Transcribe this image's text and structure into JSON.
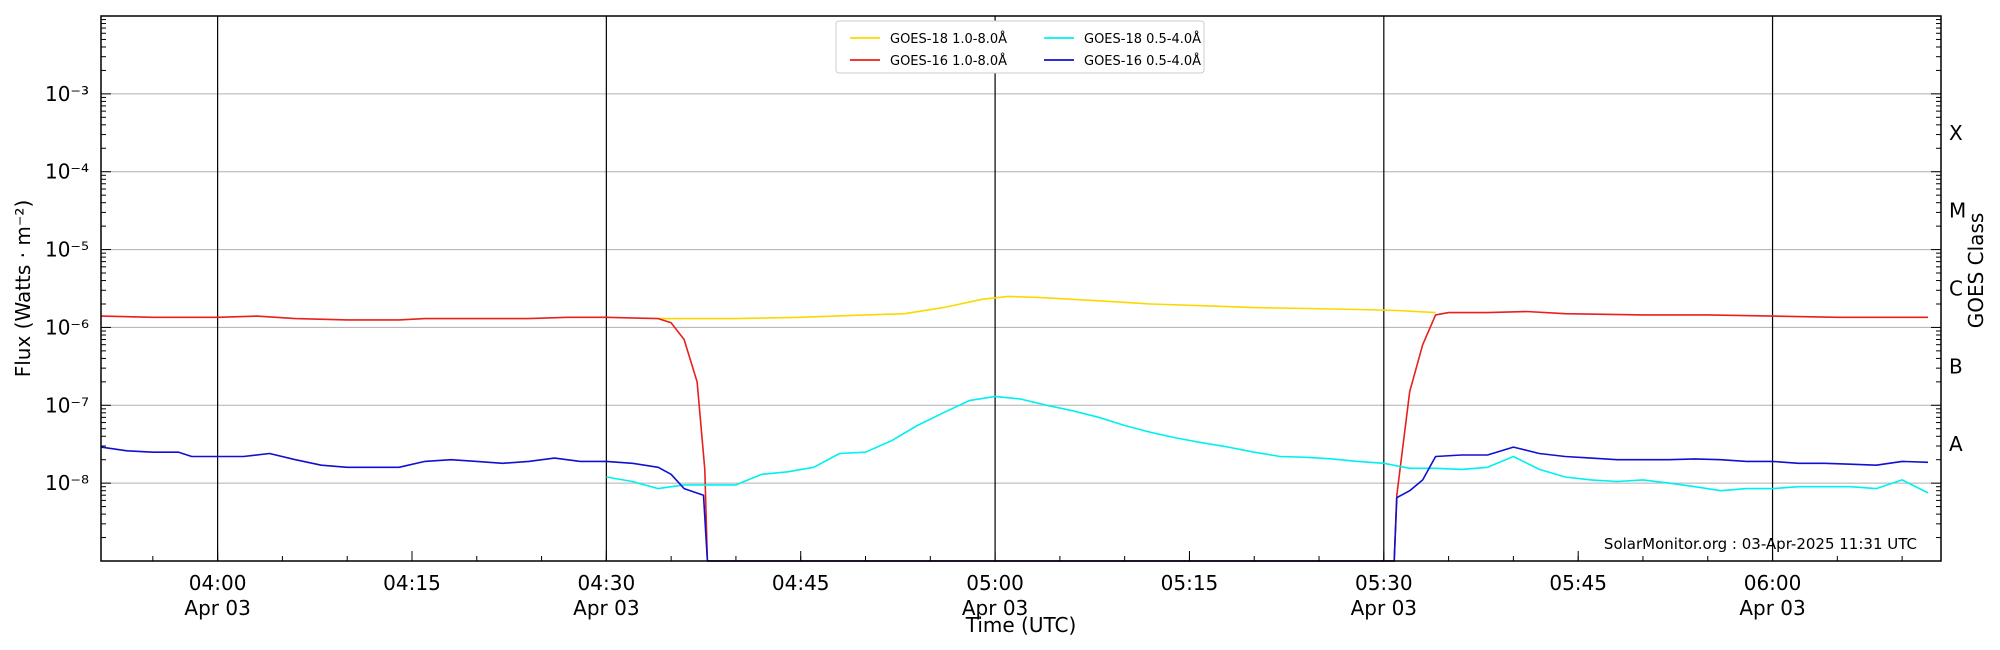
{
  "chart_data": {
    "type": "line",
    "xlabel": "Time (UTC)",
    "ylabel": "Flux (Watts · m⁻²)",
    "right_label": "GOES Class",
    "credit": "SolarMonitor.org : 03-Apr-2025 11:31 UTC",
    "x_range": [
      "03:51",
      "06:13"
    ],
    "y_scale": "log",
    "ylim": [
      1e-09,
      0.01
    ],
    "grid": "horizontal at each decade",
    "legend_position": "top-center",
    "x_ticks": [
      {
        "time": "04:00",
        "label": "04:00",
        "sublabel": "Apr 03",
        "vline": true
      },
      {
        "time": "04:15",
        "label": "04:15",
        "sublabel": "",
        "vline": false
      },
      {
        "time": "04:30",
        "label": "04:30",
        "sublabel": "Apr 03",
        "vline": true
      },
      {
        "time": "04:45",
        "label": "04:45",
        "sublabel": "",
        "vline": false
      },
      {
        "time": "05:00",
        "label": "05:00",
        "sublabel": "Apr 03",
        "vline": true
      },
      {
        "time": "05:15",
        "label": "05:15",
        "sublabel": "",
        "vline": false
      },
      {
        "time": "05:30",
        "label": "05:30",
        "sublabel": "Apr 03",
        "vline": true
      },
      {
        "time": "05:45",
        "label": "05:45",
        "sublabel": "",
        "vline": false
      },
      {
        "time": "06:00",
        "label": "06:00",
        "sublabel": "Apr 03",
        "vline": true
      }
    ],
    "y_ticks": [
      {
        "exp": -8,
        "label": "10⁻⁸"
      },
      {
        "exp": -7,
        "label": "10⁻⁷"
      },
      {
        "exp": -6,
        "label": "10⁻⁶"
      },
      {
        "exp": -5,
        "label": "10⁻⁵"
      },
      {
        "exp": -4,
        "label": "10⁻⁴"
      },
      {
        "exp": -3,
        "label": "10⁻³"
      }
    ],
    "goes_classes": [
      {
        "label": "A",
        "exp": -7.5
      },
      {
        "label": "B",
        "exp": -6.5
      },
      {
        "label": "C",
        "exp": -5.5
      },
      {
        "label": "M",
        "exp": -4.5
      },
      {
        "label": "X",
        "exp": -3.5
      }
    ],
    "series": [
      {
        "name": "GOES-18 1.0-8.0Å",
        "color": "#ffd700",
        "points": [
          [
            "04:34",
            1.3e-06
          ],
          [
            "04:40",
            1.3e-06
          ],
          [
            "04:45",
            1.35e-06
          ],
          [
            "04:50",
            1.45e-06
          ],
          [
            "04:53",
            1.5e-06
          ],
          [
            "04:56",
            1.8e-06
          ],
          [
            "04:59",
            2.3e-06
          ],
          [
            "05:01",
            2.5e-06
          ],
          [
            "05:04",
            2.4e-06
          ],
          [
            "05:08",
            2.2e-06
          ],
          [
            "05:12",
            2e-06
          ],
          [
            "05:16",
            1.9e-06
          ],
          [
            "05:20",
            1.8e-06
          ],
          [
            "05:24",
            1.75e-06
          ],
          [
            "05:28",
            1.7e-06
          ],
          [
            "05:31",
            1.65e-06
          ],
          [
            "05:34",
            1.55e-06
          ]
        ]
      },
      {
        "name": "GOES-16 1.0-8.0Å",
        "color": "#e8201a",
        "points": [
          [
            "03:51",
            1.4e-06
          ],
          [
            "03:55",
            1.35e-06
          ],
          [
            "04:00",
            1.35e-06
          ],
          [
            "04:03",
            1.4e-06
          ],
          [
            "04:06",
            1.3e-06
          ],
          [
            "04:10",
            1.25e-06
          ],
          [
            "04:14",
            1.25e-06
          ],
          [
            "04:16",
            1.3e-06
          ],
          [
            "04:20",
            1.3e-06
          ],
          [
            "04:24",
            1.3e-06
          ],
          [
            "04:27",
            1.35e-06
          ],
          [
            "04:30",
            1.35e-06
          ],
          [
            "04:34",
            1.3e-06
          ],
          [
            "04:35",
            1.15e-06
          ],
          [
            "04:36",
            7e-07
          ],
          [
            "04:37",
            2e-07
          ],
          [
            "04:37.6",
            1.5e-08
          ],
          [
            "04:37.8",
            1e-09
          ],
          [
            "05:30.8",
            1e-09
          ],
          [
            "05:31",
            7e-09
          ],
          [
            "05:32",
            1.5e-07
          ],
          [
            "05:33",
            6e-07
          ],
          [
            "05:34",
            1.45e-06
          ],
          [
            "05:35",
            1.55e-06
          ],
          [
            "05:38",
            1.55e-06
          ],
          [
            "05:41",
            1.6e-06
          ],
          [
            "05:44",
            1.5e-06
          ],
          [
            "05:50",
            1.45e-06
          ],
          [
            "05:55",
            1.45e-06
          ],
          [
            "06:00",
            1.4e-06
          ],
          [
            "06:05",
            1.35e-06
          ],
          [
            "06:10",
            1.35e-06
          ],
          [
            "06:12",
            1.35e-06
          ]
        ]
      },
      {
        "name": "GOES-18 0.5-4.0Å",
        "color": "#00f0f0",
        "points": [
          [
            "04:30",
            1.2e-08
          ],
          [
            "04:32",
            1.05e-08
          ],
          [
            "04:34",
            8.5e-09
          ],
          [
            "04:36",
            9.5e-09
          ],
          [
            "04:38",
            9.5e-09
          ],
          [
            "04:40",
            9.5e-09
          ],
          [
            "04:42",
            1.3e-08
          ],
          [
            "04:44",
            1.4e-08
          ],
          [
            "04:46",
            1.6e-08
          ],
          [
            "04:48",
            2.4e-08
          ],
          [
            "04:50",
            2.5e-08
          ],
          [
            "04:52",
            3.5e-08
          ],
          [
            "04:54",
            5.5e-08
          ],
          [
            "04:56",
            8e-08
          ],
          [
            "04:58",
            1.15e-07
          ],
          [
            "05:00",
            1.3e-07
          ],
          [
            "05:02",
            1.2e-07
          ],
          [
            "05:04",
            1e-07
          ],
          [
            "05:06",
            8.5e-08
          ],
          [
            "05:08",
            7e-08
          ],
          [
            "05:10",
            5.5e-08
          ],
          [
            "05:12",
            4.5e-08
          ],
          [
            "05:14",
            3.8e-08
          ],
          [
            "05:16",
            3.3e-08
          ],
          [
            "05:18",
            2.9e-08
          ],
          [
            "05:20",
            2.5e-08
          ],
          [
            "05:22",
            2.2e-08
          ],
          [
            "05:24",
            2.15e-08
          ],
          [
            "05:26",
            2.05e-08
          ],
          [
            "05:28",
            1.9e-08
          ],
          [
            "05:30",
            1.8e-08
          ],
          [
            "05:32",
            1.55e-08
          ],
          [
            "05:34",
            1.55e-08
          ],
          [
            "05:36",
            1.5e-08
          ],
          [
            "05:38",
            1.6e-08
          ],
          [
            "05:40",
            2.2e-08
          ],
          [
            "05:42",
            1.5e-08
          ],
          [
            "05:44",
            1.2e-08
          ],
          [
            "05:46",
            1.1e-08
          ],
          [
            "05:48",
            1.05e-08
          ],
          [
            "05:50",
            1.1e-08
          ],
          [
            "05:52",
            1e-08
          ],
          [
            "05:54",
            9e-09
          ],
          [
            "05:56",
            8e-09
          ],
          [
            "05:58",
            8.5e-09
          ],
          [
            "06:00",
            8.5e-09
          ],
          [
            "06:02",
            9e-09
          ],
          [
            "06:04",
            9e-09
          ],
          [
            "06:06",
            9e-09
          ],
          [
            "06:08",
            8.5e-09
          ],
          [
            "06:10",
            1.1e-08
          ],
          [
            "06:12",
            7.5e-09
          ]
        ]
      },
      {
        "name": "GOES-16 0.5-4.0Å",
        "color": "#1010d0",
        "points": [
          [
            "03:51",
            2.9e-08
          ],
          [
            "03:53",
            2.6e-08
          ],
          [
            "03:55",
            2.5e-08
          ],
          [
            "03:57",
            2.5e-08
          ],
          [
            "03:58",
            2.2e-08
          ],
          [
            "04:00",
            2.2e-08
          ],
          [
            "04:02",
            2.2e-08
          ],
          [
            "04:04",
            2.4e-08
          ],
          [
            "04:06",
            2e-08
          ],
          [
            "04:08",
            1.7e-08
          ],
          [
            "04:10",
            1.6e-08
          ],
          [
            "04:12",
            1.6e-08
          ],
          [
            "04:14",
            1.6e-08
          ],
          [
            "04:16",
            1.9e-08
          ],
          [
            "04:18",
            2e-08
          ],
          [
            "04:20",
            1.9e-08
          ],
          [
            "04:22",
            1.8e-08
          ],
          [
            "04:24",
            1.9e-08
          ],
          [
            "04:26",
            2.1e-08
          ],
          [
            "04:28",
            1.9e-08
          ],
          [
            "04:30",
            1.9e-08
          ],
          [
            "04:32",
            1.8e-08
          ],
          [
            "04:34",
            1.6e-08
          ],
          [
            "04:35",
            1.3e-08
          ],
          [
            "04:36",
            8.5e-09
          ],
          [
            "04:37.5",
            7e-09
          ],
          [
            "04:37.8",
            1e-09
          ],
          [
            "05:30.8",
            1e-09
          ],
          [
            "05:31",
            6.5e-09
          ],
          [
            "05:32",
            8e-09
          ],
          [
            "05:33",
            1.1e-08
          ],
          [
            "05:34",
            2.2e-08
          ],
          [
            "05:36",
            2.3e-08
          ],
          [
            "05:38",
            2.3e-08
          ],
          [
            "05:40",
            2.9e-08
          ],
          [
            "05:42",
            2.4e-08
          ],
          [
            "05:44",
            2.2e-08
          ],
          [
            "05:46",
            2.1e-08
          ],
          [
            "05:48",
            2e-08
          ],
          [
            "05:50",
            2e-08
          ],
          [
            "05:52",
            2e-08
          ],
          [
            "05:54",
            2.05e-08
          ],
          [
            "05:56",
            2e-08
          ],
          [
            "05:58",
            1.9e-08
          ],
          [
            "06:00",
            1.9e-08
          ],
          [
            "06:02",
            1.8e-08
          ],
          [
            "06:04",
            1.8e-08
          ],
          [
            "06:06",
            1.75e-08
          ],
          [
            "06:08",
            1.7e-08
          ],
          [
            "06:10",
            1.9e-08
          ],
          [
            "06:12",
            1.85e-08
          ]
        ]
      }
    ]
  }
}
